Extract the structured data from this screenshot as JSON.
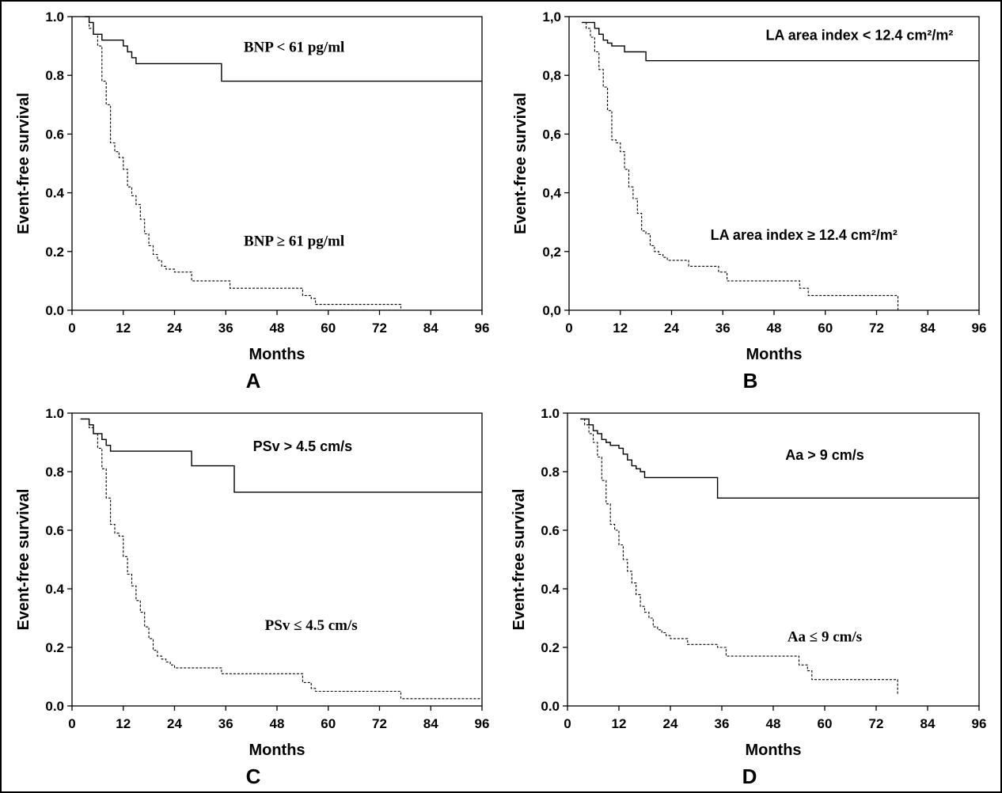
{
  "chart_data": [
    {
      "type": "line",
      "panel": "A",
      "xlabel": "Months",
      "ylabel": "Event-free survival",
      "xlim": [
        0,
        96
      ],
      "ylim": [
        0,
        1.0
      ],
      "xticks": [
        "0",
        "12",
        "24",
        "36",
        "48",
        "60",
        "72",
        "84",
        "96"
      ],
      "yticks": [
        "0.0",
        "0.2",
        "0.4",
        "0.6",
        "0.8",
        "1.0"
      ],
      "grid": false,
      "annotations": [
        {
          "text": "BNP < 61 pg/ml",
          "x": 52,
          "y": 0.88,
          "style": "serif"
        },
        {
          "text": "BNP ≥ 61 pg/ml",
          "x": 52,
          "y": 0.22,
          "style": "serif"
        }
      ],
      "series": [
        {
          "style": "solid",
          "x": [
            3,
            4,
            5,
            7,
            12,
            13,
            14,
            15,
            16,
            35,
            96
          ],
          "y": [
            1.0,
            0.98,
            0.94,
            0.92,
            0.9,
            0.88,
            0.86,
            0.84,
            0.84,
            0.78,
            0.78
          ]
        },
        {
          "style": "dashed",
          "x": [
            3,
            4,
            5,
            6,
            7,
            8,
            9,
            10,
            11,
            12,
            13,
            14,
            15,
            16,
            17,
            18,
            19,
            20,
            21,
            22,
            23,
            24,
            28,
            35,
            37,
            47,
            54,
            56,
            57,
            77
          ],
          "y": [
            1.0,
            0.96,
            0.94,
            0.9,
            0.78,
            0.7,
            0.57,
            0.54,
            0.52,
            0.48,
            0.42,
            0.39,
            0.36,
            0.31,
            0.26,
            0.22,
            0.19,
            0.17,
            0.15,
            0.14,
            0.14,
            0.13,
            0.1,
            0.1,
            0.075,
            0.075,
            0.05,
            0.04,
            0.02,
            0.0
          ]
        }
      ]
    },
    {
      "type": "line",
      "panel": "B",
      "xlabel": "Months",
      "ylabel": "Event-free survival",
      "xlim": [
        0,
        96
      ],
      "ylim": [
        0,
        1.0
      ],
      "xticks": [
        "0",
        "12",
        "24",
        "36",
        "48",
        "60",
        "72",
        "84",
        "96"
      ],
      "yticks": [
        "0,0",
        "0,2",
        "0,4",
        "0,6",
        "0,8",
        "1,0"
      ],
      "grid": false,
      "annotations": [
        {
          "text": "LA area index < 12.4 cm²/m²",
          "x": 68,
          "y": 0.92,
          "style": "sans"
        },
        {
          "text": "LA area index ≥ 12.4 cm²/m²",
          "x": 55,
          "y": 0.24,
          "style": "sans"
        }
      ],
      "series": [
        {
          "style": "solid",
          "x": [
            3,
            5,
            6,
            7,
            8,
            9,
            10,
            12,
            13,
            18,
            96
          ],
          "y": [
            0.98,
            0.98,
            0.96,
            0.94,
            0.92,
            0.91,
            0.9,
            0.9,
            0.88,
            0.85,
            0.85
          ]
        },
        {
          "style": "dashed",
          "x": [
            3,
            4,
            5,
            6,
            7,
            8,
            9,
            10,
            11,
            12,
            13,
            14,
            15,
            16,
            17,
            18,
            19,
            20,
            21,
            22,
            23,
            24,
            28,
            35,
            37,
            47,
            54,
            56,
            57,
            77
          ],
          "y": [
            0.98,
            0.96,
            0.93,
            0.88,
            0.82,
            0.76,
            0.68,
            0.58,
            0.57,
            0.54,
            0.48,
            0.42,
            0.38,
            0.33,
            0.27,
            0.26,
            0.22,
            0.2,
            0.19,
            0.18,
            0.17,
            0.17,
            0.15,
            0.13,
            0.1,
            0.1,
            0.075,
            0.05,
            0.05,
            0.0
          ]
        }
      ]
    },
    {
      "type": "line",
      "panel": "C",
      "xlabel": "Months",
      "ylabel": "Event-free survival",
      "xlim": [
        0,
        96
      ],
      "ylim": [
        0,
        1.0
      ],
      "xticks": [
        "0",
        "12",
        "24",
        "36",
        "48",
        "60",
        "72",
        "84",
        "96"
      ],
      "yticks": [
        "0.0",
        "0.2",
        "0.4",
        "0.6",
        "0.8",
        "1.0"
      ],
      "grid": false,
      "annotations": [
        {
          "text": "PSv > 4.5 cm/s",
          "x": 54,
          "y": 0.87,
          "style": "sans"
        },
        {
          "text": "PSv ≤ 4.5 cm/s",
          "x": 56,
          "y": 0.26,
          "style": "serif"
        }
      ],
      "series": [
        {
          "style": "solid",
          "x": [
            2,
            4,
            5,
            7,
            8,
            9,
            28,
            38,
            96
          ],
          "y": [
            0.98,
            0.96,
            0.93,
            0.91,
            0.89,
            0.87,
            0.82,
            0.73,
            0.73
          ]
        },
        {
          "style": "dashed",
          "x": [
            2,
            4,
            5,
            6,
            7,
            8,
            9,
            10,
            11,
            12,
            13,
            14,
            15,
            16,
            17,
            18,
            19,
            20,
            21,
            22,
            23,
            24,
            28,
            35,
            37,
            47,
            54,
            56,
            57,
            77,
            96
          ],
          "y": [
            0.98,
            0.95,
            0.93,
            0.88,
            0.81,
            0.71,
            0.62,
            0.59,
            0.58,
            0.51,
            0.45,
            0.41,
            0.36,
            0.32,
            0.27,
            0.23,
            0.19,
            0.17,
            0.16,
            0.15,
            0.14,
            0.13,
            0.13,
            0.11,
            0.11,
            0.11,
            0.08,
            0.06,
            0.05,
            0.025,
            0.025
          ]
        }
      ]
    },
    {
      "type": "line",
      "panel": "D",
      "xlabel": "Months",
      "ylabel": "Event-free survival",
      "xlim": [
        0,
        96
      ],
      "ylim": [
        0,
        1.0
      ],
      "xticks": [
        "0",
        "12",
        "24",
        "36",
        "48",
        "60",
        "72",
        "84",
        "96"
      ],
      "yticks": [
        "0.0",
        "0.2",
        "0.4",
        "0.6",
        "0.8",
        "1.0"
      ],
      "grid": false,
      "annotations": [
        {
          "text": "Aa > 9 cm/s",
          "x": 60,
          "y": 0.84,
          "style": "sans"
        },
        {
          "text": "Aa ≤ 9 cm/s",
          "x": 60,
          "y": 0.22,
          "style": "serif"
        }
      ],
      "series": [
        {
          "style": "solid",
          "x": [
            3,
            5,
            6,
            7,
            8,
            9,
            10,
            12,
            13,
            14,
            15,
            16,
            17,
            18,
            35,
            96
          ],
          "y": [
            0.98,
            0.96,
            0.94,
            0.93,
            0.91,
            0.9,
            0.89,
            0.88,
            0.86,
            0.84,
            0.82,
            0.81,
            0.8,
            0.78,
            0.71,
            0.71
          ]
        },
        {
          "style": "dashed",
          "x": [
            3,
            4,
            5,
            6,
            7,
            8,
            9,
            10,
            11,
            12,
            13,
            14,
            15,
            16,
            17,
            18,
            19,
            20,
            21,
            22,
            23,
            24,
            28,
            35,
            37,
            47,
            54,
            56,
            57,
            77
          ],
          "y": [
            0.98,
            0.96,
            0.93,
            0.9,
            0.85,
            0.77,
            0.69,
            0.62,
            0.6,
            0.55,
            0.5,
            0.46,
            0.42,
            0.38,
            0.34,
            0.32,
            0.3,
            0.27,
            0.26,
            0.25,
            0.24,
            0.23,
            0.21,
            0.2,
            0.17,
            0.17,
            0.14,
            0.12,
            0.09,
            0.04
          ]
        }
      ]
    }
  ]
}
